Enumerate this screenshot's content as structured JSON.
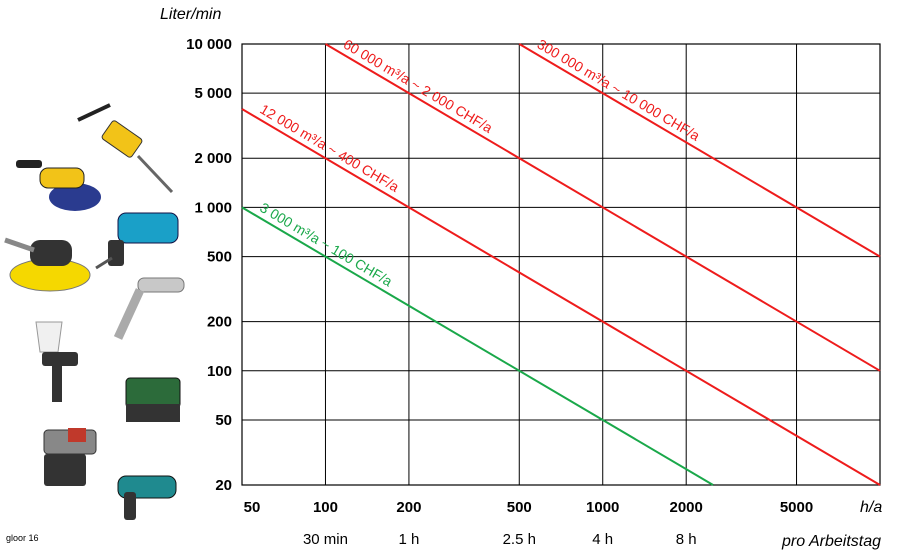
{
  "chart_data": {
    "type": "line",
    "title": "",
    "ylabel": "Liter/min",
    "xlabel": "h/a",
    "xlabel_secondary": "pro Arbeitstag",
    "x_scale": "log",
    "y_scale": "log",
    "xlim": [
      50,
      10000
    ],
    "ylim": [
      20,
      10000
    ],
    "y_ticks": [
      {
        "value": 10000,
        "label": "10 000"
      },
      {
        "value": 5000,
        "label": "5 000"
      },
      {
        "value": 2000,
        "label": "2 000"
      },
      {
        "value": 1000,
        "label": "1 000"
      },
      {
        "value": 500,
        "label": "500"
      },
      {
        "value": 200,
        "label": "200"
      },
      {
        "value": 100,
        "label": "100"
      },
      {
        "value": 50,
        "label": "50"
      },
      {
        "value": 20,
        "label": "20"
      }
    ],
    "x_ticks": [
      {
        "value": 50,
        "label": "50"
      },
      {
        "value": 100,
        "label": "100"
      },
      {
        "value": 200,
        "label": "200"
      },
      {
        "value": 500,
        "label": "500"
      },
      {
        "value": 1000,
        "label": "1000"
      },
      {
        "value": 2000,
        "label": "2000"
      },
      {
        "value": 5000,
        "label": "5000"
      }
    ],
    "x_ticks_secondary": [
      {
        "value": 100,
        "label": "30 min"
      },
      {
        "value": 200,
        "label": "1 h"
      },
      {
        "value": 500,
        "label": "2.5 h"
      },
      {
        "value": 1000,
        "label": "4 h"
      },
      {
        "value": 2000,
        "label": "8 h"
      }
    ],
    "vertical_gridlines": [
      100,
      200,
      500,
      1000,
      2000,
      5000,
      10000
    ],
    "horizontal_gridlines": [
      10000,
      5000,
      2000,
      1000,
      500,
      200,
      100,
      50
    ],
    "grid": true,
    "series": [
      {
        "name": "3 000 m³/a ~ 100 CHF/a",
        "color": "#1aa84a",
        "x": [
          50,
          2500
        ],
        "y": [
          1000,
          20
        ]
      },
      {
        "name": "12 000 m³/a ~ 400 CHF/a",
        "color": "#ee1c1c",
        "x": [
          50,
          200,
          10000
        ],
        "y": [
          4000,
          1000,
          20
        ]
      },
      {
        "name": "60 000 m³/a ~ 2 000 CHF/a",
        "color": "#ee1c1c",
        "x": [
          100,
          10000
        ],
        "y": [
          10000,
          100
        ]
      },
      {
        "name": "300 000 m³/a ~ 10 000 CHF/a",
        "color": "#ee1c1c",
        "x": [
          500,
          10000
        ],
        "y": [
          10000,
          500
        ]
      }
    ]
  },
  "credit": "gloor 16",
  "tool_icons": [
    "jackhammer-icon",
    "angle-grinder-icon",
    "impact-wrench-icon",
    "orbital-sander-icon",
    "blow-gun-icon",
    "spray-gun-icon",
    "stapler-icon",
    "nail-gun-icon",
    "heat-gun-icon"
  ]
}
